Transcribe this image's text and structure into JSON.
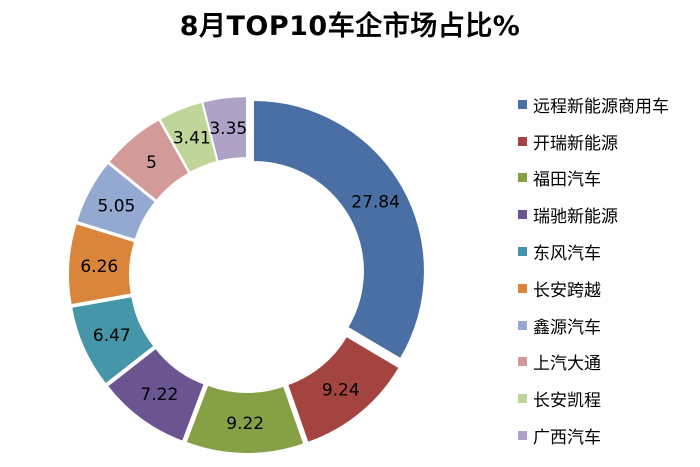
{
  "chart_data": {
    "type": "pie",
    "variant": "donut-exploded",
    "title": "8月TOP10车企市场占比%",
    "legend_position": "right",
    "series": [
      {
        "label": "远程新能源商用车",
        "value": 27.84,
        "value_text": "27.84",
        "color": "#4A6FA5"
      },
      {
        "label": "开瑞新能源",
        "value": 9.24,
        "value_text": "9.24",
        "color": "#A44441"
      },
      {
        "label": "福田汽车",
        "value": 9.22,
        "value_text": "9.22",
        "color": "#86A045"
      },
      {
        "label": "瑞驰新能源",
        "value": 7.22,
        "value_text": "7.22",
        "color": "#6B5591"
      },
      {
        "label": "东风汽车",
        "value": 6.47,
        "value_text": "6.47",
        "color": "#4596A8"
      },
      {
        "label": "长安跨越",
        "value": 6.26,
        "value_text": "6.26",
        "color": "#D9853B"
      },
      {
        "label": "鑫源汽车",
        "value": 5.05,
        "value_text": "5.05",
        "color": "#94A9D2"
      },
      {
        "label": "上汽大通",
        "value": 5,
        "value_text": "5",
        "color": "#D39A9A"
      },
      {
        "label": "长安凯程",
        "value": 3.41,
        "value_text": "3.41",
        "color": "#BFD59A"
      },
      {
        "label": "广西汽车",
        "value": 3.35,
        "value_text": "3.35",
        "color": "#AEA3C7"
      }
    ]
  }
}
